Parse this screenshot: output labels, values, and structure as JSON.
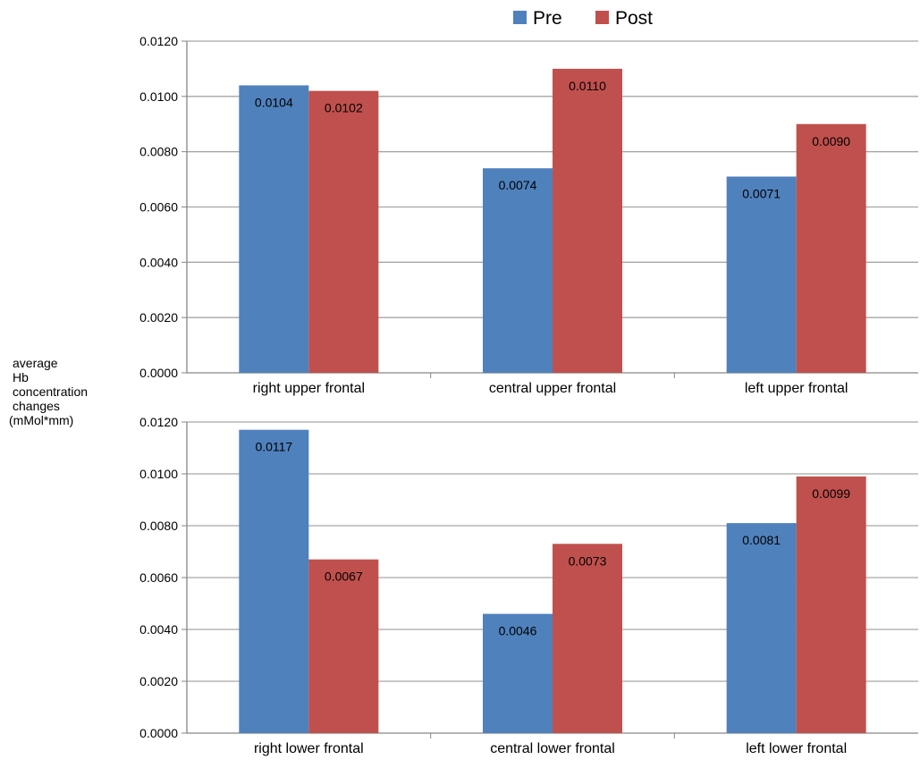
{
  "colors": {
    "pre": "#4f81bd",
    "post": "#c0504d",
    "grid": "#a6a6a6",
    "axis": "#868686"
  },
  "legend": {
    "items": [
      "Pre",
      "Post"
    ]
  },
  "ylabel_lines": [
    "average",
    "Hb",
    "concentration",
    "changes",
    "(mMol*mm)"
  ],
  "chart_data": [
    {
      "type": "bar",
      "categories": [
        "right upper frontal",
        "central upper frontal",
        "left upper frontal"
      ],
      "series": [
        {
          "name": "Pre",
          "values": [
            0.0104,
            0.0074,
            0.0071
          ]
        },
        {
          "name": "Post",
          "values": [
            0.0102,
            0.011,
            0.009
          ]
        }
      ],
      "data_labels": {
        "Pre": [
          "0.0104",
          "0.0074",
          "0.0071"
        ],
        "Post": [
          "0.0102",
          "0.0110",
          "0.0090"
        ]
      },
      "yticks": [
        "0.0000",
        "0.0020",
        "0.0040",
        "0.0060",
        "0.0080",
        "0.0100",
        "0.0120"
      ],
      "ylim": [
        0,
        0.012
      ],
      "grid": true,
      "legend_position": "top"
    },
    {
      "type": "bar",
      "categories": [
        "right lower frontal",
        "central lower frontal",
        "left lower frontal"
      ],
      "series": [
        {
          "name": "Pre",
          "values": [
            0.0117,
            0.0046,
            0.0081
          ]
        },
        {
          "name": "Post",
          "values": [
            0.0067,
            0.0073,
            0.0099
          ]
        }
      ],
      "data_labels": {
        "Pre": [
          "0.0117",
          "0.0046",
          "0.0081"
        ],
        "Post": [
          "0.0067",
          "0.0073",
          "0.0099"
        ]
      },
      "yticks": [
        "0.0000",
        "0.0020",
        "0.0040",
        "0.0060",
        "0.0080",
        "0.0100",
        "0.0120"
      ],
      "ylim": [
        0,
        0.012
      ],
      "grid": true
    }
  ]
}
